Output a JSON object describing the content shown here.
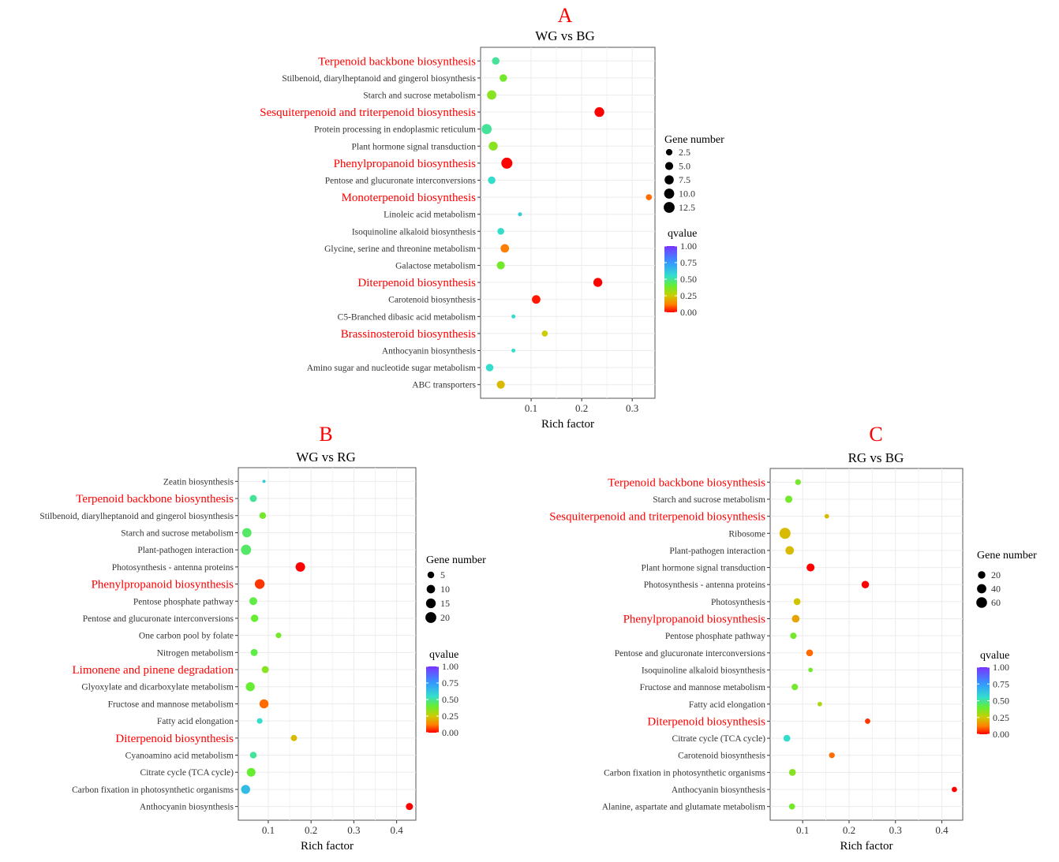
{
  "colors": {
    "highlight": "#ff0000",
    "label": "#333333",
    "panel_bg": "#ffffff",
    "grid": "#ebebeb",
    "gradient": [
      "#ff0000",
      "#ff8000",
      "#cccc00",
      "#66ee33",
      "#33ddcc",
      "#3399ff",
      "#7a33ff"
    ]
  },
  "chart_data": [
    {
      "type": "scatter",
      "letter": "A",
      "title": "WG vs BG",
      "xlabel": "Rich factor",
      "xlim": [
        0,
        0.345
      ],
      "xticks": [
        0.1,
        0.2,
        0.3
      ],
      "xtick_labels": [
        "0.1",
        "0.2",
        "0.3"
      ],
      "size_legend_title": "Gene number",
      "size_range": [
        1,
        13
      ],
      "size_legend": [
        {
          "value": 2.5,
          "label": "2.5"
        },
        {
          "value": 5.0,
          "label": "5.0"
        },
        {
          "value": 7.5,
          "label": "7.5"
        },
        {
          "value": 10.0,
          "label": "10.0"
        },
        {
          "value": 12.5,
          "label": "12.5"
        }
      ],
      "color_legend_title": "qvalue",
      "color_ticks": [
        "1.00",
        "0.75",
        "0.50",
        "0.25",
        "0.00"
      ],
      "pathways": [
        {
          "name": "Terpenoid backbone biosynthesis",
          "highlight": true,
          "rich": 0.03,
          "genes": 4,
          "q": 0.5
        },
        {
          "name": "Stilbenoid, diarylheptanoid and gingerol biosynthesis",
          "highlight": false,
          "rich": 0.045,
          "genes": 4,
          "q": 0.38
        },
        {
          "name": "Starch and sucrose metabolism",
          "highlight": false,
          "rich": 0.022,
          "genes": 8,
          "q": 0.35
        },
        {
          "name": "Sesquiterpenoid and triterpenoid biosynthesis",
          "highlight": true,
          "rich": 0.235,
          "genes": 9,
          "q": 0.0
        },
        {
          "name": "Protein processing in endoplasmic reticulum",
          "highlight": false,
          "rich": 0.012,
          "genes": 10,
          "q": 0.5
        },
        {
          "name": "Plant hormone signal transduction",
          "highlight": false,
          "rich": 0.025,
          "genes": 7,
          "q": 0.35
        },
        {
          "name": "Phenylpropanoid biosynthesis",
          "highlight": true,
          "rich": 0.052,
          "genes": 13,
          "q": 0.0
        },
        {
          "name": "Pentose and glucuronate interconversions",
          "highlight": false,
          "rich": 0.022,
          "genes": 4,
          "q": 0.55
        },
        {
          "name": "Monoterpenoid biosynthesis",
          "highlight": true,
          "rich": 0.333,
          "genes": 2,
          "q": 0.1
        },
        {
          "name": "Linoleic acid metabolism",
          "highlight": false,
          "rich": 0.078,
          "genes": 1,
          "q": 0.6
        },
        {
          "name": "Isoquinoline alkaloid biosynthesis",
          "highlight": false,
          "rich": 0.04,
          "genes": 3,
          "q": 0.55
        },
        {
          "name": "Glycine, serine and threonine metabolism",
          "highlight": false,
          "rich": 0.048,
          "genes": 6,
          "q": 0.12
        },
        {
          "name": "Galactose metabolism",
          "highlight": false,
          "rich": 0.04,
          "genes": 5,
          "q": 0.38
        },
        {
          "name": "Diterpenoid biosynthesis",
          "highlight": true,
          "rich": 0.232,
          "genes": 7,
          "q": 0.0
        },
        {
          "name": "Carotenoid biosynthesis",
          "highlight": false,
          "rich": 0.11,
          "genes": 6,
          "q": 0.02
        },
        {
          "name": "C5-Branched dibasic acid metabolism",
          "highlight": false,
          "rich": 0.065,
          "genes": 1,
          "q": 0.55
        },
        {
          "name": "Brassinosteroid biosynthesis",
          "highlight": true,
          "rich": 0.127,
          "genes": 2,
          "q": 0.25
        },
        {
          "name": "Anthocyanin biosynthesis",
          "highlight": false,
          "rich": 0.065,
          "genes": 1,
          "q": 0.55
        },
        {
          "name": "Amino sugar and nucleotide sugar metabolism",
          "highlight": false,
          "rich": 0.018,
          "genes": 4,
          "q": 0.55
        },
        {
          "name": "ABC transporters",
          "highlight": false,
          "rich": 0.04,
          "genes": 5,
          "q": 0.22
        }
      ]
    },
    {
      "type": "scatter",
      "letter": "B",
      "title": "WG vs RG",
      "xlabel": "Rich factor",
      "xlim": [
        0.03,
        0.445
      ],
      "xticks": [
        0.1,
        0.2,
        0.3,
        0.4
      ],
      "xtick_labels": [
        "0.1",
        "0.2",
        "0.3",
        "0.4"
      ],
      "size_legend_title": "Gene number",
      "size_range": [
        1,
        21
      ],
      "size_legend": [
        {
          "value": 5,
          "label": "5"
        },
        {
          "value": 10,
          "label": "10"
        },
        {
          "value": 15,
          "label": "15"
        },
        {
          "value": 20,
          "label": "20"
        }
      ],
      "color_legend_title": "qvalue",
      "color_ticks": [
        "1.00",
        "0.75",
        "0.50",
        "0.25",
        "0.00"
      ],
      "pathways": [
        {
          "name": "Zeatin biosynthesis",
          "highlight": false,
          "rich": 0.09,
          "genes": 1,
          "q": 0.6
        },
        {
          "name": "Terpenoid backbone biosynthesis",
          "highlight": true,
          "rich": 0.065,
          "genes": 6,
          "q": 0.5
        },
        {
          "name": "Stilbenoid, diarylheptanoid and gingerol biosynthesis",
          "highlight": false,
          "rich": 0.087,
          "genes": 5,
          "q": 0.38
        },
        {
          "name": "Starch and sucrose metabolism",
          "highlight": false,
          "rich": 0.05,
          "genes": 13,
          "q": 0.45
        },
        {
          "name": "Plant-pathogen interaction",
          "highlight": false,
          "rich": 0.048,
          "genes": 17,
          "q": 0.45
        },
        {
          "name": "Photosynthesis - antenna proteins",
          "highlight": false,
          "rich": 0.175,
          "genes": 14,
          "q": 0.0
        },
        {
          "name": "Phenylpropanoid biosynthesis",
          "highlight": true,
          "rich": 0.08,
          "genes": 15,
          "q": 0.05
        },
        {
          "name": "Pentose phosphate pathway",
          "highlight": false,
          "rich": 0.065,
          "genes": 8,
          "q": 0.42
        },
        {
          "name": "Pentose and glucuronate interconversions",
          "highlight": false,
          "rich": 0.068,
          "genes": 7,
          "q": 0.4
        },
        {
          "name": "One carbon pool by folate",
          "highlight": false,
          "rich": 0.124,
          "genes": 3,
          "q": 0.38
        },
        {
          "name": "Nitrogen metabolism",
          "highlight": false,
          "rich": 0.067,
          "genes": 6,
          "q": 0.42
        },
        {
          "name": "Limonene and pinene degradation",
          "highlight": true,
          "rich": 0.093,
          "genes": 6,
          "q": 0.35
        },
        {
          "name": "Glyoxylate and dicarboxylate metabolism",
          "highlight": false,
          "rich": 0.058,
          "genes": 12,
          "q": 0.4
        },
        {
          "name": "Fructose and mannose metabolism",
          "highlight": false,
          "rich": 0.09,
          "genes": 12,
          "q": 0.1
        },
        {
          "name": "Fatty acid elongation",
          "highlight": false,
          "rich": 0.08,
          "genes": 3,
          "q": 0.55
        },
        {
          "name": "Diterpenoid biosynthesis",
          "highlight": true,
          "rich": 0.16,
          "genes": 4,
          "q": 0.22
        },
        {
          "name": "Cyanoamino acid metabolism",
          "highlight": false,
          "rich": 0.065,
          "genes": 5,
          "q": 0.5
        },
        {
          "name": "Citrate cycle (TCA cycle)",
          "highlight": false,
          "rich": 0.06,
          "genes": 11,
          "q": 0.4
        },
        {
          "name": "Carbon fixation in photosynthetic organisms",
          "highlight": false,
          "rich": 0.047,
          "genes": 12,
          "q": 0.65
        },
        {
          "name": "Anthocyanin biosynthesis",
          "highlight": false,
          "rich": 0.43,
          "genes": 6,
          "q": 0.0
        }
      ]
    },
    {
      "type": "scatter",
      "letter": "C",
      "title": "RG vs BG",
      "xlabel": "Rich factor",
      "xlim": [
        0.03,
        0.445
      ],
      "xticks": [
        0.1,
        0.2,
        0.3,
        0.4
      ],
      "xtick_labels": [
        "0.1",
        "0.2",
        "0.3",
        "0.4"
      ],
      "size_legend_title": "Gene number",
      "size_range": [
        1,
        65
      ],
      "size_legend": [
        {
          "value": 20,
          "label": "20"
        },
        {
          "value": 40,
          "label": "40"
        },
        {
          "value": 60,
          "label": "60"
        }
      ],
      "color_legend_title": "qvalue",
      "color_ticks": [
        "1.00",
        "0.75",
        "0.50",
        "0.25",
        "0.00"
      ],
      "pathways": [
        {
          "name": "Terpenoid backbone biosynthesis",
          "highlight": true,
          "rich": 0.09,
          "genes": 8,
          "q": 0.38
        },
        {
          "name": "Starch and sucrose metabolism",
          "highlight": false,
          "rich": 0.07,
          "genes": 18,
          "q": 0.38
        },
        {
          "name": "Sesquiterpenoid and triterpenoid biosynthesis",
          "highlight": true,
          "rich": 0.152,
          "genes": 3,
          "q": 0.22
        },
        {
          "name": "Ribosome",
          "highlight": false,
          "rich": 0.062,
          "genes": 65,
          "q": 0.22
        },
        {
          "name": "Plant-pathogen interaction",
          "highlight": false,
          "rich": 0.072,
          "genes": 30,
          "q": 0.22
        },
        {
          "name": "Plant hormone signal transduction",
          "highlight": false,
          "rich": 0.117,
          "genes": 25,
          "q": 0.0
        },
        {
          "name": "Photosynthesis - antenna proteins",
          "highlight": false,
          "rich": 0.235,
          "genes": 20,
          "q": 0.0
        },
        {
          "name": "Photosynthesis",
          "highlight": false,
          "rich": 0.088,
          "genes": 15,
          "q": 0.24
        },
        {
          "name": "Phenylpropanoid biosynthesis",
          "highlight": true,
          "rich": 0.085,
          "genes": 22,
          "q": 0.18
        },
        {
          "name": "Pentose phosphate pathway",
          "highlight": false,
          "rich": 0.08,
          "genes": 12,
          "q": 0.38
        },
        {
          "name": "Pentose and glucuronate interconversions",
          "highlight": false,
          "rich": 0.115,
          "genes": 15,
          "q": 0.1
        },
        {
          "name": "Isoquinoline alkaloid biosynthesis",
          "highlight": false,
          "rich": 0.117,
          "genes": 3,
          "q": 0.38
        },
        {
          "name": "Fructose and mannose metabolism",
          "highlight": false,
          "rich": 0.083,
          "genes": 12,
          "q": 0.38
        },
        {
          "name": "Fatty acid elongation",
          "highlight": false,
          "rich": 0.137,
          "genes": 3,
          "q": 0.3
        },
        {
          "name": "Diterpenoid biosynthesis",
          "highlight": true,
          "rich": 0.24,
          "genes": 6,
          "q": 0.05
        },
        {
          "name": "Citrate cycle (TCA cycle)",
          "highlight": false,
          "rich": 0.066,
          "genes": 15,
          "q": 0.55
        },
        {
          "name": "Carotenoid biosynthesis",
          "highlight": false,
          "rich": 0.163,
          "genes": 8,
          "q": 0.1
        },
        {
          "name": "Carbon fixation in photosynthetic organisms",
          "highlight": false,
          "rich": 0.078,
          "genes": 15,
          "q": 0.35
        },
        {
          "name": "Anthocyanin biosynthesis",
          "highlight": false,
          "rich": 0.427,
          "genes": 6,
          "q": 0.0
        },
        {
          "name": "Alanine, aspartate and glutamate metabolism",
          "highlight": false,
          "rich": 0.077,
          "genes": 10,
          "q": 0.38
        }
      ]
    }
  ]
}
